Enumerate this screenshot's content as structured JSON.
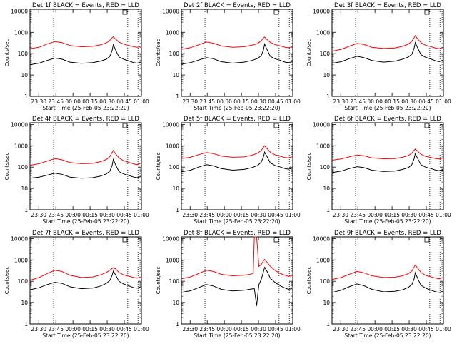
{
  "colors": {
    "events": "#000000",
    "lld": "#ff0000",
    "background": "#ffffff",
    "axis": "#000000"
  },
  "shared": {
    "ylabel": "Counts/sec",
    "xlabel": "Start Time (25-Feb-05 23:22:20)",
    "yticks": [
      "1",
      "10",
      "100",
      "1000",
      "10000"
    ],
    "xticks": [
      "23:30",
      "23:45",
      "00:00",
      "00:15",
      "00:30",
      "00:45",
      "01:00"
    ],
    "legend_marker": "square"
  },
  "chart_data": [
    {
      "type": "line",
      "title": "Det 1f BLACK = Events, RED = LLD",
      "ylabel": "Counts/sec",
      "xlabel": "Start Time (25-Feb-05 23:22:20)",
      "yscale": "log",
      "ylim": [
        1,
        12000
      ],
      "xlim_minutes": [
        0,
        97.7
      ],
      "vlines_minutes": [
        20.7,
        85.7,
        94.7
      ],
      "series": [
        {
          "name": "Events",
          "color": "#000000",
          "x": [
            0,
            8,
            15,
            22,
            28,
            35,
            45,
            55,
            62,
            67,
            70,
            72,
            73,
            75,
            78,
            82,
            87,
            91,
            94,
            97
          ],
          "y": [
            30,
            36,
            48,
            62,
            55,
            40,
            35,
            38,
            45,
            55,
            75,
            140,
            260,
            150,
            70,
            55,
            45,
            38,
            36,
            40
          ]
        },
        {
          "name": "LLD",
          "color": "#ff0000",
          "x": [
            0,
            8,
            15,
            22,
            28,
            35,
            45,
            55,
            62,
            67,
            70,
            72,
            73,
            75,
            78,
            82,
            87,
            91,
            94,
            97
          ],
          "y": [
            170,
            200,
            280,
            370,
            330,
            240,
            210,
            220,
            260,
            320,
            420,
            560,
            620,
            480,
            350,
            280,
            240,
            210,
            200,
            220
          ]
        }
      ]
    },
    {
      "type": "line",
      "title": "Det 2f BLACK = Events, RED = LLD",
      "ylabel": "Counts/sec",
      "xlabel": "Start Time (25-Feb-05 23:22:20)",
      "yscale": "log",
      "ylim": [
        1,
        12000
      ],
      "xlim_minutes": [
        0,
        97.7
      ],
      "vlines_minutes": [
        20.7,
        85.7,
        94.7
      ],
      "series": [
        {
          "name": "Events",
          "color": "#000000",
          "x": [
            0,
            8,
            15,
            22,
            28,
            35,
            45,
            55,
            62,
            67,
            70,
            72,
            73,
            75,
            78,
            82,
            87,
            91,
            94,
            97
          ],
          "y": [
            32,
            38,
            50,
            65,
            58,
            42,
            36,
            40,
            48,
            60,
            80,
            150,
            280,
            160,
            75,
            58,
            48,
            40,
            38,
            42
          ]
        },
        {
          "name": "LLD",
          "color": "#ff0000",
          "x": [
            0,
            8,
            15,
            22,
            28,
            35,
            45,
            55,
            62,
            67,
            70,
            72,
            73,
            75,
            78,
            82,
            87,
            91,
            94,
            97
          ],
          "y": [
            160,
            190,
            260,
            350,
            310,
            230,
            200,
            210,
            250,
            300,
            400,
            550,
            600,
            470,
            340,
            270,
            230,
            200,
            190,
            210
          ]
        }
      ]
    },
    {
      "type": "line",
      "title": "Det 3f BLACK = Events, RED = LLD",
      "ylabel": "Counts/sec",
      "xlabel": "Start Time (25-Feb-05 23:22:20)",
      "yscale": "log",
      "ylim": [
        1,
        12000
      ],
      "xlim_minutes": [
        0,
        97.7
      ],
      "vlines_minutes": [
        20.7,
        85.7,
        94.7
      ],
      "series": [
        {
          "name": "Events",
          "color": "#000000",
          "x": [
            0,
            8,
            15,
            22,
            28,
            35,
            45,
            55,
            62,
            67,
            70,
            72,
            73,
            75,
            78,
            82,
            87,
            91,
            94,
            97
          ],
          "y": [
            35,
            42,
            58,
            75,
            65,
            48,
            40,
            44,
            55,
            70,
            95,
            180,
            330,
            190,
            90,
            68,
            55,
            46,
            42,
            48
          ]
        },
        {
          "name": "LLD",
          "color": "#ff0000",
          "x": [
            0,
            8,
            15,
            22,
            28,
            35,
            45,
            55,
            62,
            67,
            70,
            72,
            73,
            75,
            78,
            82,
            87,
            91,
            94,
            97
          ],
          "y": [
            130,
            160,
            220,
            300,
            270,
            200,
            175,
            185,
            220,
            280,
            380,
            560,
            700,
            500,
            330,
            250,
            210,
            180,
            170,
            190
          ]
        }
      ]
    },
    {
      "type": "line",
      "title": "Det 4f BLACK = Events, RED = LLD",
      "ylabel": "Counts/sec",
      "xlabel": "Start Time (25-Feb-05 23:22:20)",
      "yscale": "log",
      "ylim": [
        1,
        12000
      ],
      "xlim_minutes": [
        0,
        97.7
      ],
      "vlines_minutes": [
        20.7,
        85.7,
        94.7
      ],
      "series": [
        {
          "name": "Events",
          "color": "#000000",
          "x": [
            0,
            8,
            15,
            22,
            28,
            35,
            45,
            55,
            62,
            67,
            70,
            72,
            73,
            75,
            78,
            82,
            87,
            91,
            94,
            97
          ],
          "y": [
            30,
            34,
            42,
            52,
            46,
            34,
            30,
            32,
            38,
            48,
            65,
            120,
            230,
            130,
            62,
            48,
            40,
            34,
            32,
            36
          ]
        },
        {
          "name": "LLD",
          "color": "#ff0000",
          "x": [
            0,
            8,
            15,
            22,
            28,
            35,
            45,
            55,
            62,
            67,
            70,
            72,
            73,
            75,
            78,
            82,
            87,
            91,
            94,
            97
          ],
          "y": [
            120,
            145,
            190,
            250,
            220,
            165,
            145,
            150,
            180,
            230,
            310,
            480,
            600,
            420,
            270,
            200,
            165,
            140,
            130,
            150
          ]
        }
      ]
    },
    {
      "type": "line",
      "title": "Det 5f BLACK = Events, RED = LLD",
      "ylabel": "Counts/sec",
      "xlabel": "Start Time (25-Feb-05 23:22:20)",
      "yscale": "log",
      "ylim": [
        1,
        12000
      ],
      "xlim_minutes": [
        0,
        97.7
      ],
      "vlines_minutes": [
        20.7,
        85.7,
        94.7
      ],
      "series": [
        {
          "name": "Events",
          "color": "#000000",
          "x": [
            0,
            8,
            15,
            22,
            28,
            35,
            45,
            55,
            62,
            67,
            70,
            72,
            73,
            75,
            78,
            82,
            87,
            91,
            94,
            97
          ],
          "y": [
            60,
            72,
            100,
            130,
            115,
            85,
            72,
            78,
            95,
            120,
            170,
            300,
            500,
            320,
            160,
            120,
            100,
            85,
            80,
            90
          ]
        },
        {
          "name": "LLD",
          "color": "#ff0000",
          "x": [
            0,
            8,
            15,
            22,
            28,
            35,
            45,
            55,
            62,
            67,
            70,
            72,
            73,
            75,
            78,
            82,
            87,
            91,
            94,
            97
          ],
          "y": [
            250,
            290,
            380,
            480,
            430,
            330,
            290,
            300,
            360,
            450,
            600,
            850,
            1000,
            750,
            500,
            380,
            320,
            280,
            270,
            300
          ]
        }
      ]
    },
    {
      "type": "line",
      "title": "Det 6f BLACK = Events, RED = LLD",
      "ylabel": "Counts/sec",
      "xlabel": "Start Time (25-Feb-05 23:22:20)",
      "yscale": "log",
      "ylim": [
        1,
        12000
      ],
      "xlim_minutes": [
        0,
        97.7
      ],
      "vlines_minutes": [
        20.7,
        85.7,
        94.7
      ],
      "series": [
        {
          "name": "Events",
          "color": "#000000",
          "x": [
            0,
            8,
            15,
            22,
            28,
            35,
            45,
            55,
            62,
            67,
            70,
            72,
            73,
            75,
            78,
            82,
            87,
            91,
            94,
            97
          ],
          "y": [
            55,
            65,
            85,
            105,
            95,
            72,
            62,
            65,
            78,
            95,
            130,
            250,
            420,
            260,
            130,
            100,
            85,
            72,
            68,
            75
          ]
        },
        {
          "name": "LLD",
          "color": "#ff0000",
          "x": [
            0,
            8,
            15,
            22,
            28,
            35,
            45,
            55,
            62,
            67,
            70,
            72,
            73,
            75,
            78,
            82,
            87,
            91,
            94,
            97
          ],
          "y": [
            210,
            240,
            300,
            370,
            340,
            270,
            245,
            250,
            290,
            350,
            450,
            620,
            700,
            560,
            400,
            320,
            280,
            250,
            240,
            260
          ]
        }
      ]
    },
    {
      "type": "line",
      "title": "Det 7f BLACK = Events, RED = LLD",
      "ylabel": "Counts/sec",
      "xlabel": "Start Time (25-Feb-05 23:22:20)",
      "yscale": "log",
      "ylim": [
        1,
        12000
      ],
      "xlim_minutes": [
        0,
        97.7
      ],
      "vlines_minutes": [
        20.7,
        85.7,
        94.7
      ],
      "series": [
        {
          "name": "Events",
          "color": "#000000",
          "x": [
            0,
            8,
            15,
            22,
            28,
            35,
            45,
            55,
            62,
            67,
            70,
            72,
            73,
            75,
            78,
            82,
            87,
            91,
            94,
            97
          ],
          "y": [
            40,
            50,
            70,
            90,
            80,
            55,
            45,
            48,
            60,
            80,
            110,
            190,
            300,
            200,
            100,
            75,
            60,
            50,
            48,
            55
          ]
        },
        {
          "name": "LLD",
          "color": "#ff0000",
          "x": [
            0,
            8,
            15,
            22,
            28,
            35,
            45,
            55,
            62,
            67,
            70,
            72,
            73,
            75,
            78,
            82,
            87,
            91,
            94,
            97
          ],
          "y": [
            110,
            150,
            230,
            330,
            290,
            190,
            150,
            160,
            200,
            260,
            330,
            400,
            420,
            380,
            260,
            200,
            170,
            150,
            140,
            160
          ]
        }
      ]
    },
    {
      "type": "line",
      "title": "Det 8f BLACK = Events, RED = LLD",
      "ylabel": "Counts/sec",
      "xlabel": "Start Time (25-Feb-05 23:22:20)",
      "yscale": "log",
      "ylim": [
        1,
        12000
      ],
      "xlim_minutes": [
        0,
        97.7
      ],
      "vlines_minutes": [
        20.7,
        85.7,
        94.7
      ],
      "series": [
        {
          "name": "Events",
          "color": "#000000",
          "x": [
            0,
            8,
            15,
            22,
            28,
            35,
            45,
            55,
            60,
            63,
            64,
            66,
            68,
            70,
            72,
            73,
            75,
            78,
            82,
            87,
            91,
            94,
            97
          ],
          "y": [
            30,
            36,
            50,
            70,
            60,
            42,
            35,
            38,
            42,
            45,
            45,
            7,
            70,
            120,
            280,
            450,
            300,
            140,
            90,
            60,
            48,
            42,
            46
          ]
        },
        {
          "name": "LLD",
          "color": "#ff0000",
          "x": [
            0,
            8,
            15,
            22,
            28,
            35,
            45,
            55,
            60,
            63,
            64,
            66,
            68,
            70,
            72,
            73,
            75,
            78,
            82,
            87,
            91,
            94,
            97
          ],
          "y": [
            130,
            160,
            230,
            330,
            290,
            210,
            180,
            190,
            210,
            230,
            12000,
            12000,
            500,
            600,
            900,
            1050,
            800,
            500,
            330,
            230,
            190,
            170,
            180
          ]
        }
      ]
    },
    {
      "type": "line",
      "title": "Det 9f BLACK = Events, RED = LLD",
      "ylabel": "Counts/sec",
      "xlabel": "Start Time (25-Feb-05 23:22:20)",
      "yscale": "log",
      "ylim": [
        1,
        12000
      ],
      "xlim_minutes": [
        0,
        97.7
      ],
      "vlines_minutes": [
        20.7,
        85.7,
        94.7
      ],
      "series": [
        {
          "name": "Events",
          "color": "#000000",
          "x": [
            0,
            8,
            15,
            22,
            28,
            35,
            45,
            55,
            62,
            67,
            70,
            72,
            73,
            75,
            78,
            82,
            87,
            91,
            94,
            97
          ],
          "y": [
            30,
            38,
            55,
            75,
            62,
            42,
            32,
            34,
            40,
            52,
            70,
            130,
            250,
            140,
            65,
            48,
            38,
            32,
            30,
            34
          ]
        },
        {
          "name": "LLD",
          "color": "#ff0000",
          "x": [
            0,
            8,
            15,
            22,
            28,
            35,
            45,
            55,
            62,
            67,
            70,
            72,
            73,
            75,
            78,
            82,
            87,
            91,
            94,
            97
          ],
          "y": [
            120,
            150,
            210,
            290,
            250,
            180,
            150,
            155,
            180,
            230,
            300,
            470,
            580,
            420,
            260,
            190,
            160,
            140,
            130,
            150
          ]
        }
      ]
    }
  ]
}
